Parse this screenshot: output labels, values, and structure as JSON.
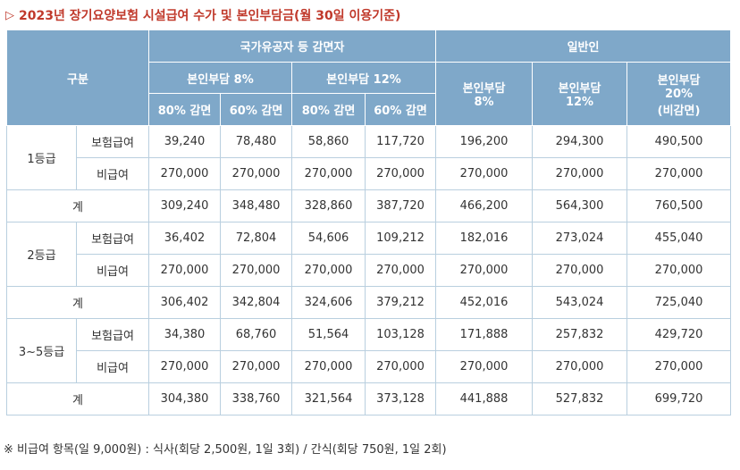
{
  "title": {
    "marker": "▷",
    "text": "2023년 장기요양보험 시설급여 수가 및 본인부담금(월 30일 이용기준)"
  },
  "table": {
    "header": {
      "category": "구분",
      "group_veteran": "국가유공자 등 감면자",
      "group_general": "일반인",
      "veteran_8": "본인부담 8%",
      "veteran_12": "본인부담 12%",
      "reduce_80": "80% 감면",
      "reduce_60": "60% 감면",
      "general_8_line1": "본인부담",
      "general_8_line2": "8%",
      "general_12_line1": "본인부담",
      "general_12_line2": "12%",
      "general_20_line1": "본인부담",
      "general_20_line2": "20%",
      "general_20_line3": "(비감면)"
    },
    "groups": [
      {
        "grade": "1등급",
        "rows": [
          {
            "label": "보험급여",
            "values": [
              "39,240",
              "78,480",
              "58,860",
              "117,720",
              "196,200",
              "294,300",
              "490,500"
            ]
          },
          {
            "label": "비급여",
            "values": [
              "270,000",
              "270,000",
              "270,000",
              "270,000",
              "270,000",
              "270,000",
              "270,000"
            ]
          }
        ],
        "total": {
          "label": "계",
          "values": [
            "309,240",
            "348,480",
            "328,860",
            "387,720",
            "466,200",
            "564,300",
            "760,500"
          ]
        }
      },
      {
        "grade": "2등급",
        "rows": [
          {
            "label": "보험급여",
            "values": [
              "36,402",
              "72,804",
              "54,606",
              "109,212",
              "182,016",
              "273,024",
              "455,040"
            ]
          },
          {
            "label": "비급여",
            "values": [
              "270,000",
              "270,000",
              "270,000",
              "270,000",
              "270,000",
              "270,000",
              "270,000"
            ]
          }
        ],
        "total": {
          "label": "계",
          "values": [
            "306,402",
            "342,804",
            "324,606",
            "379,212",
            "452,016",
            "543,024",
            "725,040"
          ]
        }
      },
      {
        "grade": "3~5등급",
        "rows": [
          {
            "label": "보험급여",
            "values": [
              "34,380",
              "68,760",
              "51,564",
              "103,128",
              "171,888",
              "257,832",
              "429,720"
            ]
          },
          {
            "label": "비급여",
            "values": [
              "270,000",
              "270,000",
              "270,000",
              "270,000",
              "270,000",
              "270,000",
              "270,000"
            ]
          }
        ],
        "total": {
          "label": "계",
          "values": [
            "304,380",
            "338,760",
            "321,564",
            "373,128",
            "441,888",
            "527,832",
            "699,720"
          ]
        }
      }
    ]
  },
  "note": "※ 비급여 항목(일 9,000원) : 식사(회당 2,500원, 1일 3회) / 간식(회당 750원, 1일 2회)",
  "colors": {
    "header_bg": "#7fa8c9",
    "title_red": "#c0392b",
    "border": "#b9cfdf"
  }
}
